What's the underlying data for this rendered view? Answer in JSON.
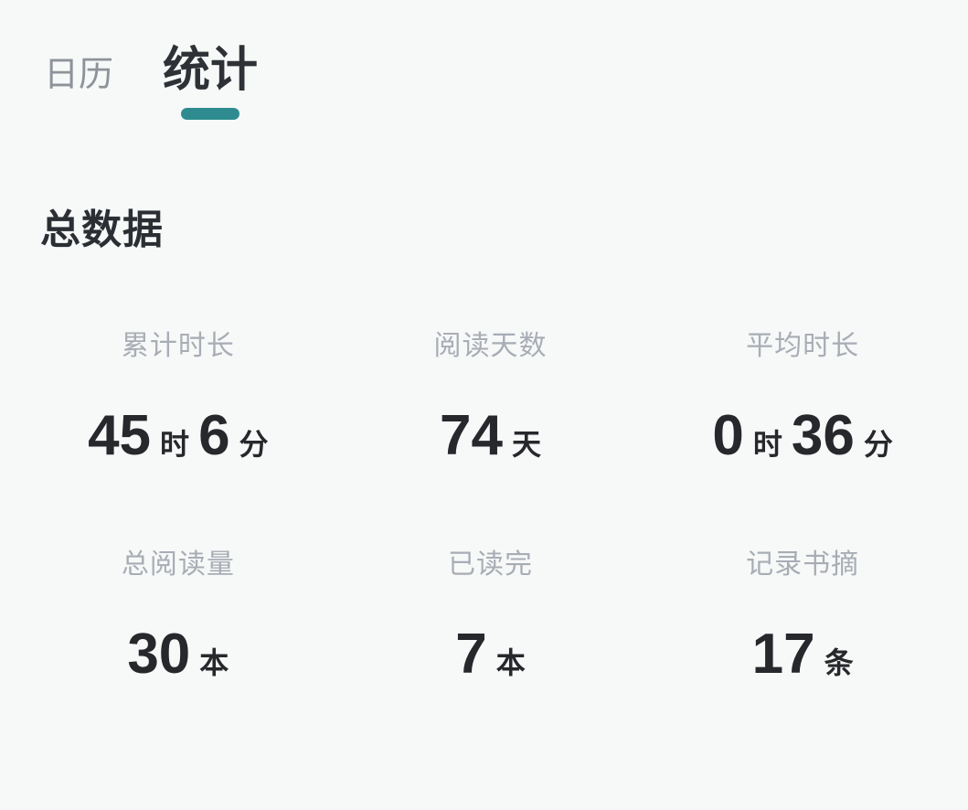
{
  "colors": {
    "accent": "#2e8c90",
    "background": "#f7f8f8",
    "label_gray": "#a8adb5",
    "value_dark": "#26282b"
  },
  "tabs": {
    "items": [
      {
        "label": "日历",
        "active": false
      },
      {
        "label": "统计",
        "active": true
      }
    ]
  },
  "section": {
    "title": "总数据"
  },
  "stats": {
    "items": [
      {
        "label": "累计时长",
        "value_parts": [
          {
            "type": "number",
            "text": "45"
          },
          {
            "type": "unit",
            "text": "时"
          },
          {
            "type": "number",
            "text": "6"
          },
          {
            "type": "unit",
            "text": "分"
          }
        ]
      },
      {
        "label": "阅读天数",
        "value_parts": [
          {
            "type": "number",
            "text": "74"
          },
          {
            "type": "unit",
            "text": "天"
          }
        ]
      },
      {
        "label": "平均时长",
        "value_parts": [
          {
            "type": "number",
            "text": "0"
          },
          {
            "type": "unit",
            "text": "时"
          },
          {
            "type": "number",
            "text": "36"
          },
          {
            "type": "unit",
            "text": "分"
          }
        ]
      },
      {
        "label": "总阅读量",
        "value_parts": [
          {
            "type": "number",
            "text": "30"
          },
          {
            "type": "unit",
            "text": "本"
          }
        ]
      },
      {
        "label": "已读完",
        "value_parts": [
          {
            "type": "number",
            "text": "7"
          },
          {
            "type": "unit",
            "text": "本"
          }
        ]
      },
      {
        "label": "记录书摘",
        "value_parts": [
          {
            "type": "number",
            "text": "17"
          },
          {
            "type": "unit",
            "text": "条"
          }
        ]
      }
    ]
  }
}
